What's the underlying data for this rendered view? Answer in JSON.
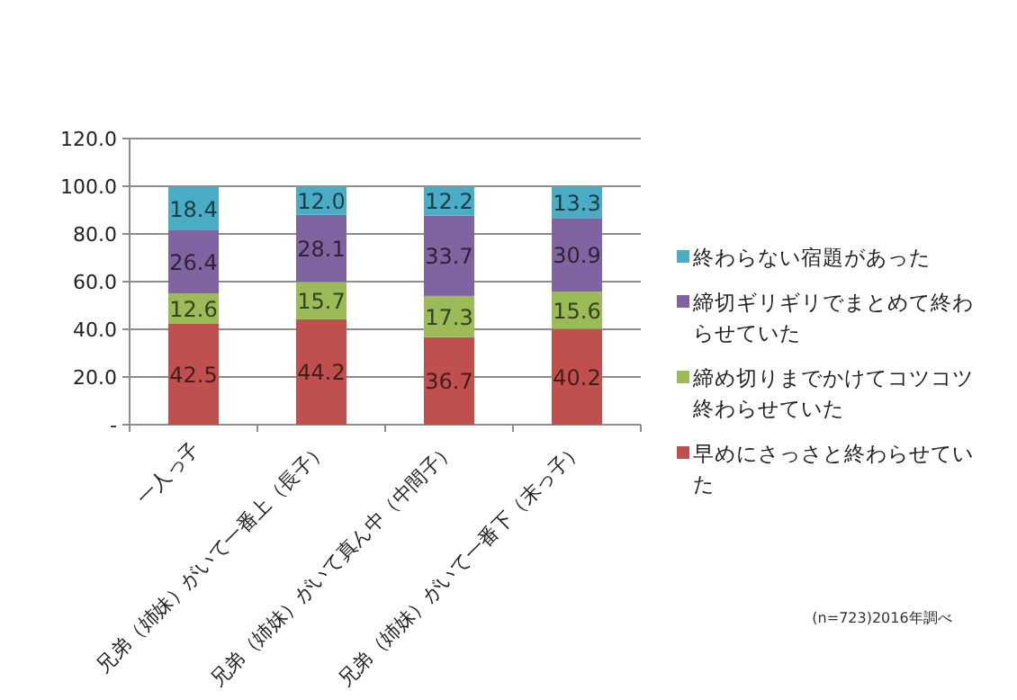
{
  "chart_data": {
    "type": "bar",
    "stacked": true,
    "grid": "y",
    "legend": "right",
    "categories": [
      "一人っ子",
      "兄弟（姉妹）がいて一番上（長子）",
      "兄弟（姉妹）がいて真ん中（中間子）",
      "兄弟（姉妹）がいて一番下（末っ子）"
    ],
    "series": [
      {
        "name": "早めにさっさと終わらせていた",
        "color": "#c0504d",
        "values": [
          42.5,
          44.2,
          36.7,
          40.2
        ],
        "value_labels": [
          "42.5",
          "44.2",
          "36.7",
          "40.2"
        ]
      },
      {
        "name": "締め切りまでかけてコツコツ終わらせていた",
        "color": "#9bbb59",
        "values": [
          12.6,
          15.7,
          17.3,
          15.6
        ],
        "value_labels": [
          "12.6",
          "15.7",
          "17.3",
          "15.6"
        ]
      },
      {
        "name": "締切ギリギリでまとめて終わらせていた",
        "color": "#8064a2",
        "values": [
          26.4,
          28.1,
          33.7,
          30.9
        ],
        "value_labels": [
          "26.4",
          "28.1",
          "33.7",
          "30.9"
        ]
      },
      {
        "name": "終わらない宿題があった",
        "color": "#4bacc6",
        "values": [
          18.4,
          12.0,
          12.2,
          13.3
        ],
        "value_labels": [
          "18.4",
          "12.0",
          "12.2",
          "13.3"
        ]
      }
    ],
    "ylim": [
      0,
      120
    ],
    "yticks": [
      {
        "value": 0,
        "label": "-"
      },
      {
        "value": 20,
        "label": "20.0"
      },
      {
        "value": 40,
        "label": "40.0"
      },
      {
        "value": 60,
        "label": "60.0"
      },
      {
        "value": 80,
        "label": "80.0"
      },
      {
        "value": 100,
        "label": "100.0"
      },
      {
        "value": 120,
        "label": "120.0"
      }
    ],
    "annotations": [
      "(n=723)2016年調べ"
    ]
  }
}
